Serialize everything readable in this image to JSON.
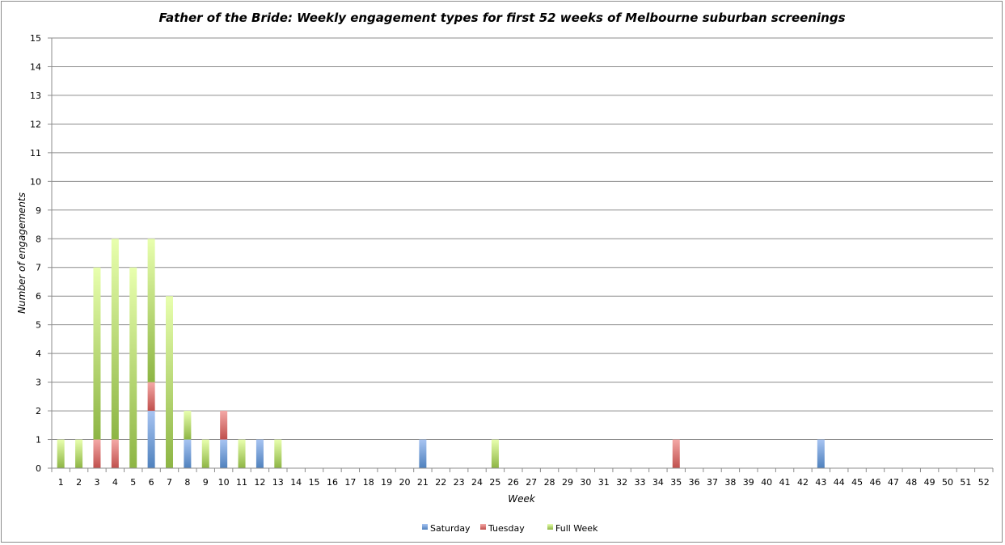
{
  "chart_data": {
    "type": "bar",
    "stacked": true,
    "title": "Father of the Bride: Weekly engagement types for first 52 weeks of Melbourne suburban screenings",
    "xlabel": "Week",
    "ylabel": "Number of engagements",
    "ylim": [
      0,
      15
    ],
    "y_ticks": [
      "0",
      "1",
      "2",
      "3",
      "4",
      "5",
      "6",
      "7",
      "8",
      "9",
      "10",
      "11",
      "12",
      "13",
      "14",
      "15"
    ],
    "grid": true,
    "legend_position": "bottom",
    "categories": [
      "1",
      "2",
      "3",
      "4",
      "5",
      "6",
      "7",
      "8",
      "9",
      "10",
      "11",
      "12",
      "13",
      "14",
      "15",
      "16",
      "17",
      "18",
      "19",
      "20",
      "21",
      "22",
      "23",
      "24",
      "25",
      "26",
      "27",
      "28",
      "29",
      "30",
      "31",
      "32",
      "33",
      "34",
      "35",
      "36",
      "37",
      "38",
      "39",
      "40",
      "41",
      "42",
      "43",
      "44",
      "45",
      "46",
      "47",
      "48",
      "49",
      "50",
      "51",
      "52"
    ],
    "series": [
      {
        "name": "Saturday",
        "color": "#4f81bd",
        "values": [
          0,
          0,
          0,
          0,
          0,
          2,
          0,
          1,
          0,
          1,
          0,
          1,
          0,
          0,
          0,
          0,
          0,
          0,
          0,
          0,
          1,
          0,
          0,
          0,
          0,
          0,
          0,
          0,
          0,
          0,
          0,
          0,
          0,
          0,
          0,
          0,
          0,
          0,
          0,
          0,
          0,
          0,
          1,
          0,
          0,
          0,
          0,
          0,
          0,
          0,
          0,
          0
        ]
      },
      {
        "name": "Tuesday",
        "color": "#c0504d",
        "values": [
          0,
          0,
          1,
          1,
          0,
          1,
          0,
          0,
          0,
          1,
          0,
          0,
          0,
          0,
          0,
          0,
          0,
          0,
          0,
          0,
          0,
          0,
          0,
          0,
          0,
          0,
          0,
          0,
          0,
          0,
          0,
          0,
          0,
          0,
          1,
          0,
          0,
          0,
          0,
          0,
          0,
          0,
          0,
          0,
          0,
          0,
          0,
          0,
          0,
          0,
          0,
          0
        ]
      },
      {
        "name": "Full Week",
        "color": "#9bbb59",
        "values": [
          1,
          1,
          6,
          7,
          7,
          5,
          6,
          1,
          1,
          0,
          1,
          0,
          1,
          0,
          0,
          0,
          0,
          0,
          0,
          0,
          0,
          0,
          0,
          0,
          1,
          0,
          0,
          0,
          0,
          0,
          0,
          0,
          0,
          0,
          0,
          0,
          0,
          0,
          0,
          0,
          0,
          0,
          0,
          0,
          0,
          0,
          0,
          0,
          0,
          0,
          0,
          0
        ]
      }
    ]
  }
}
